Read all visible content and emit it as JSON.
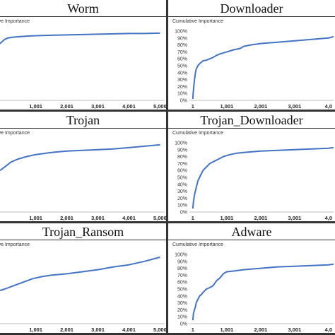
{
  "chart_data": [
    {
      "id": "worm",
      "type": "line",
      "title": "Worm",
      "ylabel": "Cumulative Importance",
      "y_ticks_visible": false,
      "x_tick_labels": [
        "1,001",
        "2,001",
        "3,001",
        "4,001",
        "5,000"
      ],
      "xlim": [
        -150,
        5150
      ],
      "ylim": [
        0,
        1
      ],
      "x": [
        -150,
        0,
        100,
        250,
        500,
        800,
        1100,
        1500,
        2000,
        2500,
        3000,
        3500,
        4000,
        4500,
        5000
      ],
      "y": [
        0.82,
        0.88,
        0.9,
        0.91,
        0.92,
        0.93,
        0.935,
        0.94,
        0.945,
        0.95,
        0.955,
        0.96,
        0.965,
        0.965,
        0.97
      ]
    },
    {
      "id": "downloader",
      "type": "line",
      "title": "Downloader",
      "ylabel": "Cumulative Importance",
      "y_tick_labels": [
        "0%",
        "10%",
        "20%",
        "30%",
        "40%",
        "50%",
        "60%",
        "70%",
        "80%",
        "90%",
        "100%"
      ],
      "x_tick_labels": [
        "1",
        "1,001",
        "2,001",
        "3,001",
        "4,0"
      ],
      "xlim": [
        -100,
        4150
      ],
      "ylim": [
        0,
        1
      ],
      "x": [
        1,
        10,
        30,
        50,
        80,
        100,
        150,
        200,
        250,
        300,
        400,
        500,
        600,
        700,
        800,
        1000,
        1200,
        1400,
        1500,
        1700,
        2000,
        2500,
        3000,
        3500,
        4000,
        4150
      ],
      "y": [
        0.02,
        0.1,
        0.2,
        0.3,
        0.4,
        0.45,
        0.5,
        0.53,
        0.55,
        0.57,
        0.58,
        0.6,
        0.62,
        0.65,
        0.67,
        0.7,
        0.73,
        0.75,
        0.78,
        0.8,
        0.82,
        0.84,
        0.86,
        0.88,
        0.9,
        0.92
      ]
    },
    {
      "id": "trojan",
      "type": "line",
      "title": "Trojan",
      "ylabel": "Cumulative Importance",
      "y_ticks_visible": false,
      "x_tick_labels": [
        "1,001",
        "2,001",
        "3,001",
        "4,001",
        "5,000"
      ],
      "xlim": [
        -150,
        5150
      ],
      "ylim": [
        0,
        1
      ],
      "x": [
        -150,
        0,
        200,
        400,
        700,
        1000,
        1500,
        2000,
        2500,
        3000,
        3500,
        4000,
        4500,
        5000
      ],
      "y": [
        0.6,
        0.65,
        0.72,
        0.76,
        0.8,
        0.83,
        0.86,
        0.88,
        0.89,
        0.9,
        0.91,
        0.93,
        0.95,
        0.97
      ]
    },
    {
      "id": "trojan_downloader",
      "type": "line",
      "title": "Trojan_Downloader",
      "ylabel": "Cumulative Importance",
      "y_tick_labels": [
        "0%",
        "10%",
        "20%",
        "30%",
        "40%",
        "50%",
        "60%",
        "70%",
        "80%",
        "90%",
        "100%"
      ],
      "x_tick_labels": [
        "1",
        "1,001",
        "2,001",
        "3,001",
        "4,0"
      ],
      "xlim": [
        -100,
        4150
      ],
      "ylim": [
        0,
        1
      ],
      "x": [
        1,
        20,
        50,
        100,
        150,
        200,
        300,
        400,
        500,
        700,
        900,
        1100,
        1300,
        1500,
        2000,
        2500,
        3000,
        3500,
        4000,
        4150
      ],
      "y": [
        0.05,
        0.15,
        0.25,
        0.35,
        0.45,
        0.5,
        0.6,
        0.65,
        0.7,
        0.75,
        0.8,
        0.83,
        0.85,
        0.86,
        0.88,
        0.89,
        0.9,
        0.91,
        0.92,
        0.93
      ]
    },
    {
      "id": "trojan_ransom",
      "type": "line",
      "title": "Trojan_Ransom",
      "ylabel": "Cumulative Importance",
      "y_ticks_visible": false,
      "x_tick_labels": [
        "1,001",
        "2,001",
        "3,001",
        "4,001",
        "5,000"
      ],
      "xlim": [
        -150,
        5150
      ],
      "ylim": [
        0,
        1
      ],
      "x": [
        -150,
        0,
        300,
        600,
        900,
        1200,
        1500,
        2000,
        2500,
        3000,
        3500,
        4000,
        4500,
        5000
      ],
      "y": [
        0.48,
        0.5,
        0.55,
        0.6,
        0.65,
        0.68,
        0.7,
        0.72,
        0.75,
        0.78,
        0.82,
        0.85,
        0.9,
        0.96
      ]
    },
    {
      "id": "adware",
      "type": "line",
      "title": "Adware",
      "ylabel": "Cumulative Importance",
      "y_tick_labels": [
        "0%",
        "10%",
        "20%",
        "30%",
        "40%",
        "50%",
        "60%",
        "70%",
        "80%",
        "90%",
        "100%"
      ],
      "x_tick_labels": [
        "1",
        "1,001",
        "2,001",
        "3,001",
        "4,0"
      ],
      "xlim": [
        -100,
        4150
      ],
      "ylim": [
        0,
        1
      ],
      "x": [
        1,
        20,
        50,
        80,
        100,
        150,
        200,
        250,
        300,
        400,
        500,
        600,
        700,
        800,
        900,
        1000,
        1200,
        1500,
        2000,
        2500,
        3000,
        3500,
        4000,
        4150
      ],
      "y": [
        0.05,
        0.15,
        0.2,
        0.25,
        0.3,
        0.35,
        0.4,
        0.42,
        0.45,
        0.5,
        0.52,
        0.55,
        0.62,
        0.66,
        0.72,
        0.75,
        0.76,
        0.78,
        0.8,
        0.82,
        0.83,
        0.84,
        0.85,
        0.86
      ]
    }
  ]
}
